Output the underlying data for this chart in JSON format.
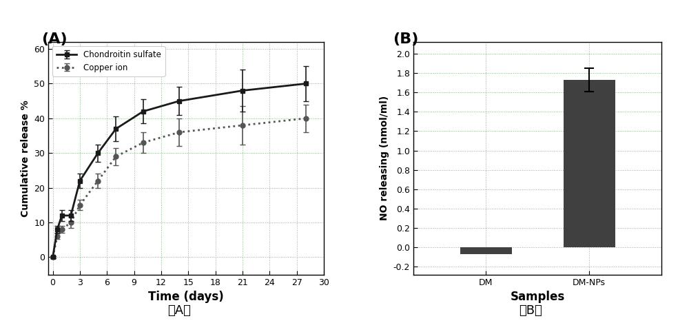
{
  "panel_A": {
    "xlabel": "Time (days)",
    "ylabel": "Cumulative release %",
    "xlim": [
      -0.5,
      30
    ],
    "ylim": [
      -5,
      62
    ],
    "xticks": [
      0,
      3,
      6,
      9,
      12,
      15,
      18,
      21,
      24,
      27,
      30
    ],
    "yticks": [
      0,
      10,
      20,
      30,
      40,
      50,
      60
    ],
    "chondroitin": {
      "x": [
        0,
        0.5,
        1,
        2,
        3,
        5,
        7,
        10,
        14,
        21,
        28
      ],
      "y": [
        0,
        8,
        12,
        12,
        22,
        30,
        37,
        42,
        45,
        48,
        50
      ],
      "yerr": [
        0.3,
        1.0,
        1.5,
        1.5,
        2.0,
        2.5,
        3.5,
        3.5,
        4.0,
        6.0,
        5.0
      ],
      "label": "Chondroitin sulfate",
      "color": "#1a1a1a",
      "marker": "s"
    },
    "copper": {
      "x": [
        0,
        0.5,
        1,
        2,
        3,
        5,
        7,
        10,
        14,
        21,
        28
      ],
      "y": [
        0,
        6,
        8,
        10,
        15,
        22,
        29,
        33,
        36,
        38,
        40
      ],
      "yerr": [
        0.3,
        0.8,
        1.0,
        1.5,
        1.5,
        2.0,
        2.5,
        3.0,
        4.0,
        5.5,
        4.0
      ],
      "label": "Copper ion",
      "color": "#555555",
      "marker": "o"
    }
  },
  "panel_B": {
    "xlabel": "Samples",
    "ylabel": "NO releasing (nmol/ml)",
    "ylim": [
      -0.28,
      2.12
    ],
    "yticks": [
      -0.2,
      0.0,
      0.2,
      0.4,
      0.6,
      0.8,
      1.0,
      1.2,
      1.4,
      1.6,
      1.8,
      2.0
    ],
    "categories": [
      "DM",
      "DM-NPs"
    ],
    "values": [
      -0.07,
      1.73
    ],
    "yerr": [
      0.0,
      0.12
    ],
    "bar_color": "#404040"
  },
  "background_color": "#ffffff",
  "grid_color": "#88bb88",
  "label_A_top": "(A)",
  "label_B_top": "(B)",
  "label_A_bottom": "（A）",
  "label_B_bottom": "（B）"
}
